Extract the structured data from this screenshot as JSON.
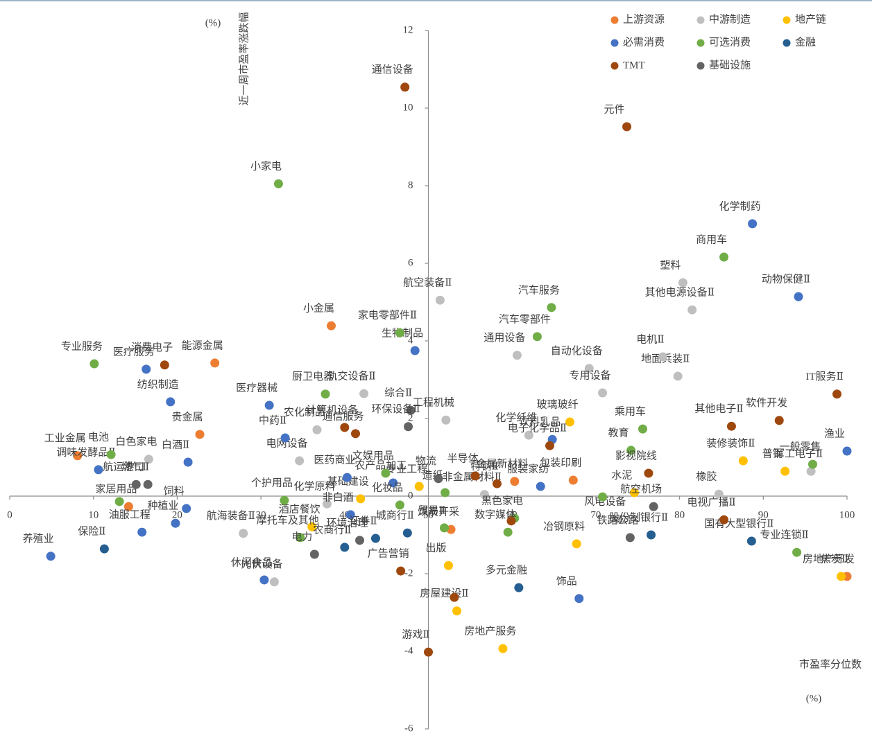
{
  "chart_data": {
    "type": "scatter",
    "y_label": "近一周市盈率涨跌幅",
    "y_unit": "(%)",
    "x_label": "市盈率分位数",
    "x_unit": "(%)",
    "xlim": [
      0,
      100
    ],
    "xticks": [
      0,
      10,
      20,
      30,
      40,
      50,
      60,
      70,
      80,
      90,
      100
    ],
    "ylim": [
      -6,
      12
    ],
    "yticks": [
      -6,
      -4,
      -2,
      0,
      2,
      4,
      6,
      8,
      10,
      12
    ],
    "legend": "top-right",
    "series": [
      {
        "name": "上游资源",
        "color": "#ed7d31",
        "point_labels": [
          "小金属",
          "能源金属",
          "贵金属",
          "工业金属",
          "家居用品",
          "煤炭开采",
          "包装印刷",
          "焦炭Ⅱ",
          "金属新材料"
        ],
        "x": [
          38.4,
          24.5,
          22.7,
          8.1,
          14.2,
          52.7,
          67.3,
          100,
          60.3
        ],
        "y": [
          4.39,
          3.43,
          1.59,
          1.04,
          -0.27,
          -0.86,
          0.41,
          -2.07,
          0.38
        ]
      },
      {
        "name": "中游制造",
        "color": "#bfbfbf",
        "point_labels": [
          "航空装备Ⅱ",
          "通用设备",
          "自动化设备",
          "专用设备",
          "塑料",
          "其他电源设备Ⅱ",
          "地面兵装Ⅱ",
          "电机Ⅱ",
          "轨交设备Ⅱ",
          "农化制品",
          "工程机械",
          "化学纤维",
          "白色家电",
          "橡胶",
          "非金属材料Ⅱ",
          "航海装备Ⅱ",
          "光伏设备",
          "风电设备",
          "化学原料",
          "军工电子Ⅱ",
          "电网设备"
        ],
        "x": [
          51.4,
          60.6,
          69.2,
          70.8,
          80.4,
          81.5,
          79.8,
          78.0,
          42.3,
          36.7,
          52.1,
          62.0,
          16.6,
          84.7,
          56.7,
          27.9,
          31.6,
          72.6,
          37.9,
          95.7,
          34.6
        ],
        "y": [
          5.05,
          3.63,
          3.29,
          2.66,
          5.5,
          4.8,
          3.09,
          3.59,
          2.64,
          1.71,
          1.96,
          1.57,
          0.95,
          0.05,
          0.04,
          -0.96,
          -2.21,
          -0.59,
          -0.2,
          0.64,
          0.91
        ]
      },
      {
        "name": "地产链",
        "color": "#ffc000",
        "point_labels": [
          "玻璃玻纤",
          "装修装饰Ⅱ",
          "普钢",
          "水泥",
          "房地产开发",
          "房屋建设Ⅱ",
          "房地产服务",
          "出版",
          "冶钢原料",
          "专业工程",
          "基础建设",
          "酒店餐饮"
        ],
        "x": [
          66.9,
          87.6,
          92.6,
          74.6,
          99.3,
          53.4,
          58.9,
          52.4,
          67.7,
          48.9,
          41.9,
          36.1
        ],
        "y": [
          1.91,
          0.91,
          0.64,
          0.09,
          -2.07,
          -2.96,
          -3.93,
          -1.79,
          -1.23,
          0.25,
          -0.07,
          -0.79
        ]
      },
      {
        "name": "必需消费",
        "color": "#4472c4",
        "point_labels": [
          "化学制药",
          "动物保健Ⅱ",
          "渔业",
          "生物制品",
          "医疗服务",
          "纺织制造",
          "医疗器械",
          "中药Ⅱ",
          "白酒Ⅱ",
          "调味发酵品Ⅱ",
          "医药商业",
          "农产品加工",
          "服装家纺",
          "饮料乳品",
          "种植业",
          "油服工程",
          "养殖业",
          "非白酒",
          "饰品",
          "休闲食品",
          "饲料"
        ],
        "x": [
          88.7,
          94.2,
          100,
          48.4,
          16.3,
          19.2,
          31.0,
          32.9,
          21.3,
          10.6,
          40.3,
          45.8,
          63.4,
          64.8,
          19.8,
          15.8,
          4.9,
          40.7,
          68.0,
          30.4,
          21.1
        ],
        "y": [
          7.02,
          5.14,
          1.16,
          3.75,
          3.27,
          2.43,
          2.34,
          1.5,
          0.875,
          0.68,
          0.48,
          0.34,
          0.25,
          1.46,
          -0.7,
          -0.93,
          -1.55,
          -0.48,
          -2.64,
          -2.16,
          -0.32
        ]
      },
      {
        "name": "可选消费",
        "color": "#70ad47",
        "point_labels": [
          "小家电",
          "商用车",
          "汽车服务",
          "汽车零部件",
          "家电零部件Ⅱ",
          "专业服务",
          "厨卫电器",
          "乘用车",
          "教育",
          "一般零售",
          "电池",
          "文娱用品",
          "个护用品",
          "化妆品",
          null,
          "摩托车及其他",
          "贸易Ⅱ",
          "黑色家电",
          "数字媒体",
          "专业连锁Ⅱ",
          "造纸",
          null
        ],
        "x": [
          32.1,
          85.3,
          64.7,
          63.0,
          46.6,
          10.1,
          37.7,
          75.6,
          74.2,
          95.9,
          12.1,
          44.9,
          32.8,
          46.6,
          13.1,
          34.7,
          51.9,
          60.3,
          59.5,
          94.0,
          52.0,
          70.8
        ],
        "y": [
          8.05,
          6.16,
          4.86,
          4.11,
          4.21,
          3.41,
          2.63,
          1.73,
          1.18,
          0.82,
          1.07,
          0.59,
          -0.11,
          -0.23,
          -0.14,
          -1.07,
          -0.82,
          -0.57,
          -0.93,
          -1.45,
          0.09,
          -0.02
        ]
      },
      {
        "name": "金融",
        "color": "#255e91",
        "point_labels": [
          "股份制银行Ⅱ",
          "国有大型银行Ⅱ",
          "多元金融",
          "证券Ⅱ",
          "城商行Ⅱ",
          "农商行Ⅱ",
          "保险Ⅱ"
        ],
        "x": [
          76.6,
          88.6,
          60.8,
          43.7,
          47.5,
          40.0,
          11.3
        ],
        "y": [
          -1.0,
          -1.16,
          -2.36,
          -1.09,
          -0.95,
          -1.32,
          -1.36
        ]
      },
      {
        "name": "TMT",
        "color": "#9e480e",
        "point_labels": [
          "通信设备",
          "元件",
          "IT服务Ⅱ",
          "软件开发",
          "其他电子Ⅱ",
          "消费电子",
          "计算机设备",
          "通信服务",
          "电子化学品Ⅱ",
          "影视院线",
          "半导体",
          "特钢Ⅱ",
          "电视广播Ⅱ",
          null,
          "广告营销",
          null,
          "游戏Ⅱ"
        ],
        "x": [
          47.2,
          73.7,
          98.8,
          91.9,
          86.2,
          18.5,
          40.0,
          41.3,
          64.5,
          76.3,
          55.6,
          58.2,
          85.3,
          59.9,
          46.7,
          53.1,
          50.0
        ],
        "y": [
          10.54,
          9.52,
          2.63,
          1.95,
          1.8,
          3.38,
          1.77,
          1.61,
          1.3,
          0.59,
          0.52,
          0.32,
          -0.61,
          -0.64,
          -1.93,
          -2.61,
          -4.02
        ]
      },
      {
        "name": "基础设施",
        "color": "#636363",
        "point_labels": [
          "综合Ⅱ",
          "环保设备Ⅱ",
          "航运港口",
          "燃气Ⅱ",
          "物流",
          "航空机场",
          "铁路公路",
          "电力",
          "环境治理"
        ],
        "x": [
          47.9,
          47.6,
          15.1,
          16.5,
          51.2,
          76.9,
          74.1,
          36.4,
          41.8
        ],
        "y": [
          2.21,
          1.79,
          0.3,
          0.3,
          0.45,
          -0.27,
          -1.07,
          -1.5,
          -1.14
        ]
      }
    ]
  }
}
